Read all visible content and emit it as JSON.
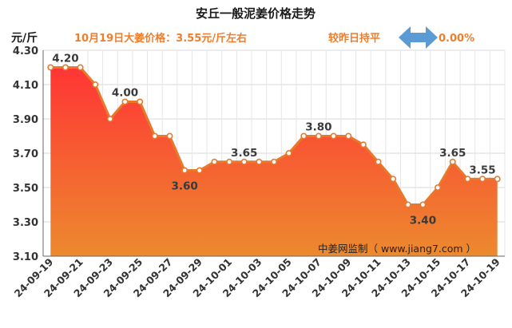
{
  "header": {
    "title": "安丘一般泥姜价格走势",
    "unit_label": "元/斤",
    "price_note": "10月19日大姜价格：3.55元/斤左右",
    "compare_label": "较昨日持平",
    "change_value": "0.00%"
  },
  "source_note": "中姜网监制（ www.jiang7.com ）",
  "colors": {
    "line": "#e8782c",
    "fill_top": "#ff3535",
    "fill_bottom": "#ec8a2e",
    "arrow": "#5b9bd5",
    "accent_text": "#ef7d2c"
  },
  "chart_data": {
    "type": "area",
    "title": "安丘一般泥姜价格走势",
    "ylabel": "元/斤",
    "xlabel": "",
    "ylim": [
      3.1,
      4.3
    ],
    "yticks": [
      "3.10",
      "3.30",
      "3.50",
      "3.70",
      "3.90",
      "4.10",
      "4.30"
    ],
    "x": [
      "24-09-19",
      "24-09-20",
      "24-09-21",
      "24-09-22",
      "24-09-23",
      "24-09-24",
      "24-09-25",
      "24-09-26",
      "24-09-27",
      "24-09-28",
      "24-09-29",
      "24-09-30",
      "24-10-01",
      "24-10-02",
      "24-10-03",
      "24-10-04",
      "24-10-05",
      "24-10-06",
      "24-10-07",
      "24-10-08",
      "24-10-09",
      "24-10-10",
      "24-10-11",
      "24-10-12",
      "24-10-13",
      "24-10-14",
      "24-10-15",
      "24-10-16",
      "24-10-17",
      "24-10-18",
      "24-10-19"
    ],
    "values": [
      4.2,
      4.2,
      4.2,
      4.1,
      3.9,
      4.0,
      4.0,
      3.8,
      3.8,
      3.6,
      3.6,
      3.65,
      3.65,
      3.65,
      3.65,
      3.65,
      3.7,
      3.8,
      3.8,
      3.8,
      3.8,
      3.75,
      3.65,
      3.55,
      3.4,
      3.4,
      3.5,
      3.65,
      3.55,
      3.55,
      3.55
    ],
    "xtick_labels": [
      "24-09-19",
      "24-09-21",
      "24-09-23",
      "24-09-25",
      "24-09-27",
      "24-09-29",
      "24-10-01",
      "24-10-03",
      "24-10-05",
      "24-10-07",
      "24-10-09",
      "24-10-11",
      "24-10-13",
      "24-10-15",
      "24-10-17",
      "24-10-19"
    ],
    "data_labels": [
      {
        "index": 1,
        "text": "4.20",
        "pos": "above"
      },
      {
        "index": 5,
        "text": "4.00",
        "pos": "above"
      },
      {
        "index": 9,
        "text": "3.60",
        "pos": "below"
      },
      {
        "index": 13,
        "text": "3.65",
        "pos": "above"
      },
      {
        "index": 18,
        "text": "3.80",
        "pos": "above"
      },
      {
        "index": 25,
        "text": "3.40",
        "pos": "below"
      },
      {
        "index": 27,
        "text": "3.65",
        "pos": "above"
      },
      {
        "index": 29,
        "text": "3.55",
        "pos": "above"
      }
    ],
    "grid": true
  }
}
